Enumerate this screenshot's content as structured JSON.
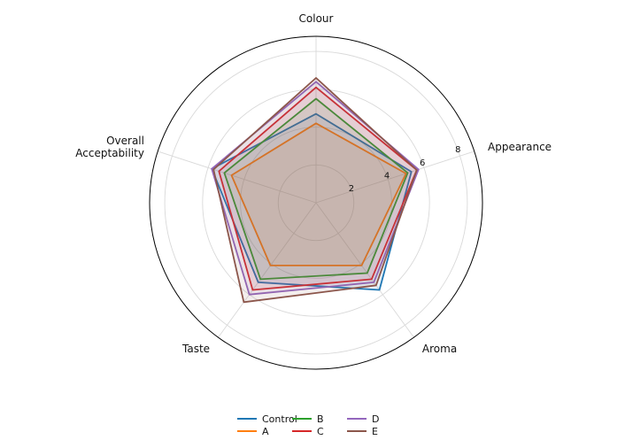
{
  "chart_data": {
    "type": "radar",
    "axes": [
      "Colour",
      "Appearance",
      "Aroma",
      "Taste",
      "Overall Acceptability"
    ],
    "axis_label_lines": [
      [
        "Colour"
      ],
      [
        "Appearance"
      ],
      [
        "Aroma"
      ],
      [
        "Taste"
      ],
      [
        "Overall",
        "Acceptability"
      ]
    ],
    "rlim": [
      0,
      8.8
    ],
    "rticks": [
      2,
      4,
      6,
      8
    ],
    "rtick_labels": [
      "2",
      "4",
      "6",
      "8"
    ],
    "grid": true,
    "legend_placement": "bottom-center",
    "series": [
      {
        "name": "Control",
        "color": "#1f77b4",
        "values": [
          4.7,
          5.3,
          5.7,
          5.2,
          5.8
        ]
      },
      {
        "name": "A",
        "color": "#ff7f0e",
        "values": [
          4.2,
          5.0,
          4.1,
          4.1,
          4.7
        ]
      },
      {
        "name": "B",
        "color": "#2ca02c",
        "values": [
          5.5,
          5.1,
          4.6,
          5.0,
          5.1
        ]
      },
      {
        "name": "C",
        "color": "#d62728",
        "values": [
          6.1,
          5.6,
          5.0,
          5.7,
          5.4
        ]
      },
      {
        "name": "D",
        "color": "#9467bd",
        "values": [
          6.4,
          5.7,
          5.2,
          6.0,
          5.8
        ]
      },
      {
        "name": "E",
        "color": "#8c564b",
        "values": [
          6.6,
          5.6,
          5.4,
          6.5,
          5.7
        ]
      }
    ]
  }
}
